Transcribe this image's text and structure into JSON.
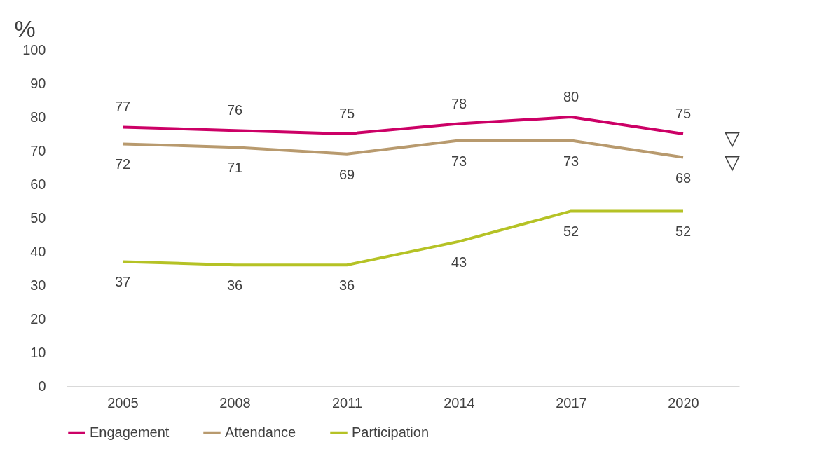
{
  "chart_data": {
    "type": "line",
    "ylabel": "%",
    "categories": [
      "2005",
      "2008",
      "2011",
      "2014",
      "2017",
      "2020"
    ],
    "series": [
      {
        "name": "Engagement",
        "color": "#cc0066",
        "values": [
          77,
          76,
          75,
          78,
          80,
          75
        ]
      },
      {
        "name": "Attendance",
        "color": "#b89a6e",
        "values": [
          72,
          71,
          69,
          73,
          73,
          68
        ]
      },
      {
        "name": "Participation",
        "color": "#b5c225",
        "values": [
          37,
          36,
          36,
          43,
          52,
          52
        ]
      }
    ],
    "ylim": [
      0,
      100
    ],
    "yticks": [
      0,
      10,
      20,
      30,
      40,
      50,
      60,
      70,
      80,
      90,
      100
    ],
    "grid": false,
    "legend": "bottom",
    "data_labels": true,
    "marker": "none",
    "line_style": "solid",
    "annotations": [
      {
        "text": "▽",
        "x": "2020",
        "y": 75
      },
      {
        "text": "▽",
        "x": "2020",
        "y": 68
      }
    ]
  }
}
